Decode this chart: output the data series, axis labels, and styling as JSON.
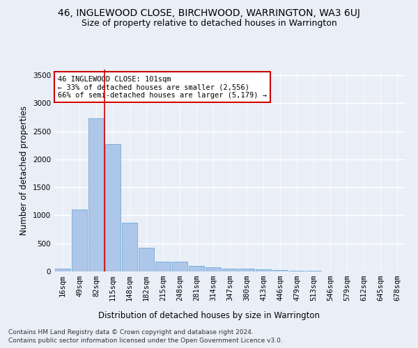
{
  "title": "46, INGLEWOOD CLOSE, BIRCHWOOD, WARRINGTON, WA3 6UJ",
  "subtitle": "Size of property relative to detached houses in Warrington",
  "xlabel": "Distribution of detached houses by size in Warrington",
  "ylabel": "Number of detached properties",
  "bar_labels": [
    "16sqm",
    "49sqm",
    "82sqm",
    "115sqm",
    "148sqm",
    "182sqm",
    "215sqm",
    "248sqm",
    "281sqm",
    "314sqm",
    "347sqm",
    "380sqm",
    "413sqm",
    "446sqm",
    "479sqm",
    "513sqm",
    "546sqm",
    "579sqm",
    "612sqm",
    "645sqm",
    "678sqm"
  ],
  "bar_values": [
    55,
    1100,
    2730,
    2270,
    870,
    420,
    175,
    175,
    100,
    70,
    55,
    50,
    35,
    30,
    10,
    10,
    5,
    5,
    5,
    3,
    2
  ],
  "bar_color": "#aec7e8",
  "bar_edge_color": "#5a9fd4",
  "property_line_bin": 2,
  "annotation_title": "46 INGLEWOOD CLOSE: 101sqm",
  "annotation_line1": "← 33% of detached houses are smaller (2,556)",
  "annotation_line2": "66% of semi-detached houses are larger (5,179) →",
  "annotation_box_color": "#ffffff",
  "annotation_box_edge": "#cc0000",
  "vline_color": "#cc0000",
  "ylim": [
    0,
    3600
  ],
  "yticks": [
    0,
    500,
    1000,
    1500,
    2000,
    2500,
    3000,
    3500
  ],
  "footnote1": "Contains HM Land Registry data © Crown copyright and database right 2024.",
  "footnote2": "Contains public sector information licensed under the Open Government Licence v3.0.",
  "bg_color": "#eaeff7",
  "plot_bg_color": "#eaeff7",
  "grid_color": "#ffffff",
  "title_fontsize": 10,
  "subtitle_fontsize": 9,
  "axis_label_fontsize": 8.5,
  "tick_fontsize": 7.5
}
